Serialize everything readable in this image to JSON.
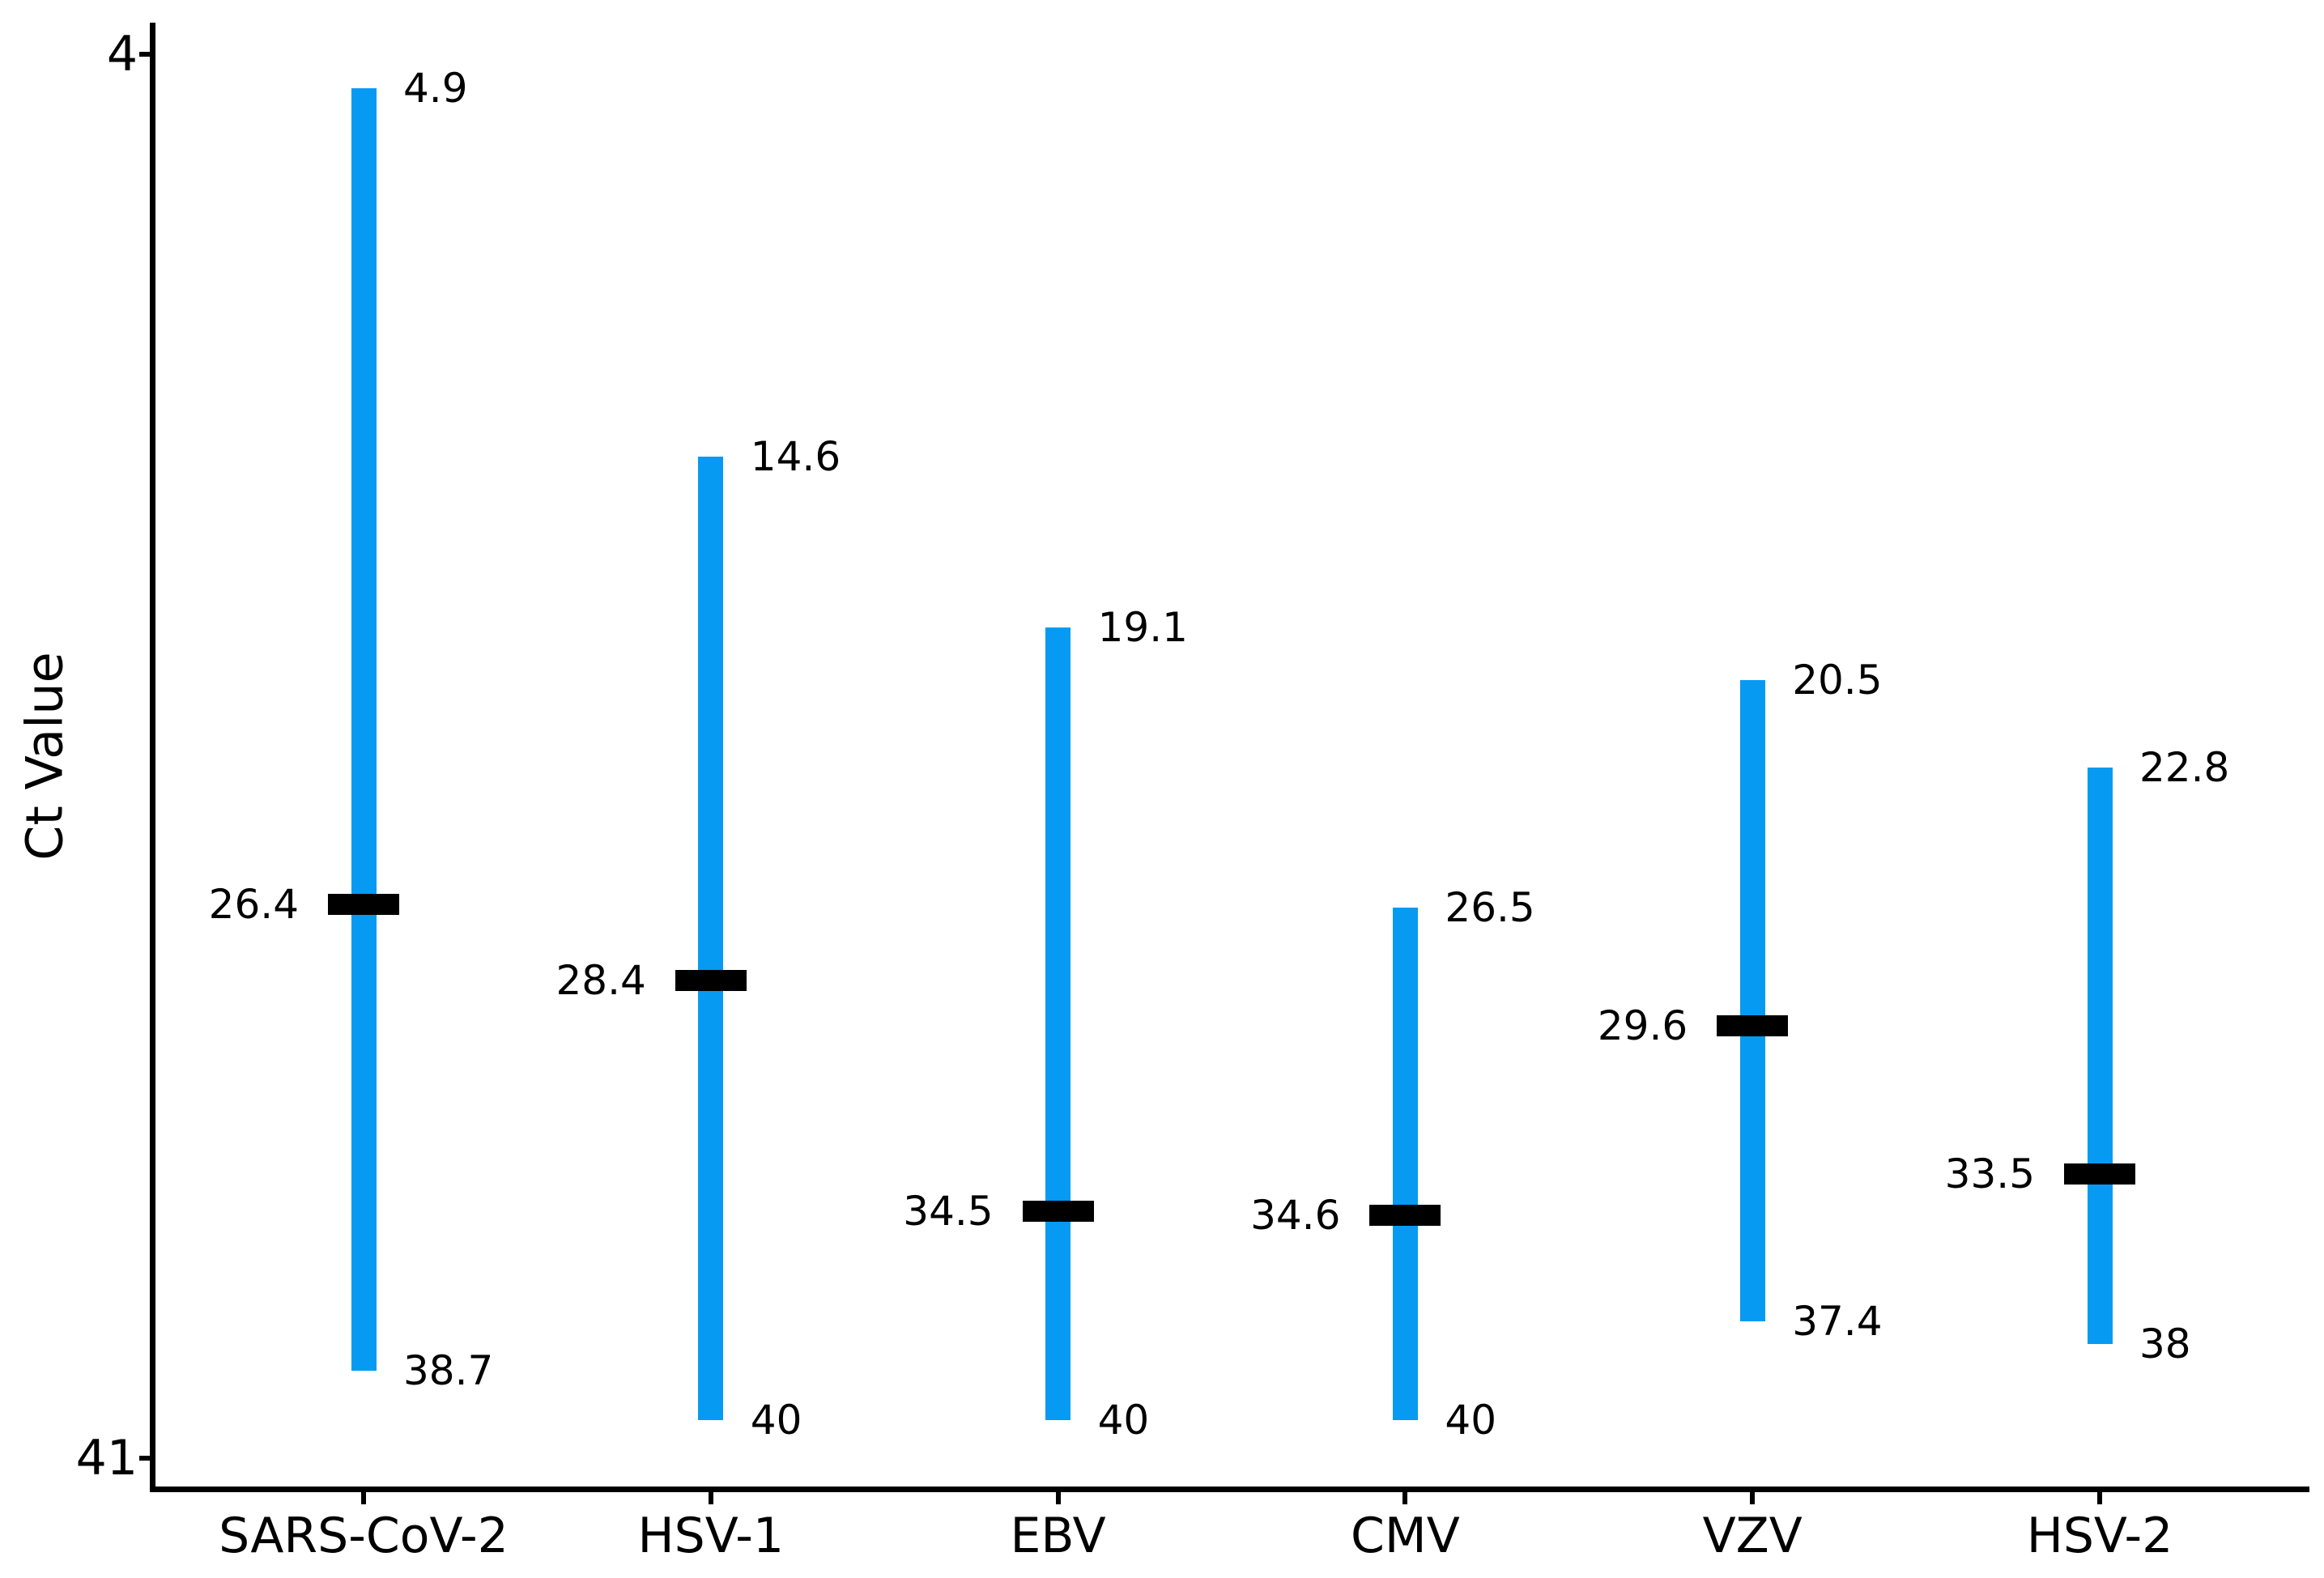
{
  "chart_data": {
    "type": "bar",
    "subtype": "vertical-range-bars-with-median-markers",
    "title": "",
    "xlabel": "",
    "ylabel": "Ct Value",
    "grid": false,
    "legend": false,
    "y_axis": {
      "tick_labels": [
        "4",
        "41"
      ],
      "tick_values": [
        4,
        41
      ],
      "inverted": true,
      "range_shown": [
        4,
        41
      ]
    },
    "colors": {
      "bar": "#069AF3",
      "median_marker": "#000000",
      "axis": "#000000",
      "text": "#000000",
      "background": "#ffffff"
    },
    "categories": [
      "SARS-CoV-2",
      "HSV-1",
      "EBV",
      "CMV",
      "VZV",
      "HSV-2"
    ],
    "series": [
      {
        "category": "SARS-CoV-2",
        "low": 4.9,
        "low_label": "4.9",
        "median": 26.4,
        "median_label": "26.4",
        "high": 38.7,
        "high_label": "38.7"
      },
      {
        "category": "HSV-1",
        "low": 14.6,
        "low_label": "14.6",
        "median": 28.4,
        "median_label": "28.4",
        "high": 40,
        "high_label": "40"
      },
      {
        "category": "EBV",
        "low": 19.1,
        "low_label": "19.1",
        "median": 34.5,
        "median_label": "34.5",
        "high": 40,
        "high_label": "40"
      },
      {
        "category": "CMV",
        "low": 26.5,
        "low_label": "26.5",
        "median": 34.6,
        "median_label": "34.6",
        "high": 40,
        "high_label": "40"
      },
      {
        "category": "VZV",
        "low": 20.5,
        "low_label": "20.5",
        "median": 29.6,
        "median_label": "29.6",
        "high": 37.4,
        "high_label": "37.4"
      },
      {
        "category": "HSV-2",
        "low": 22.8,
        "low_label": "22.8",
        "median": 33.5,
        "median_label": "33.5",
        "high": 38,
        "high_label": "38"
      }
    ]
  }
}
